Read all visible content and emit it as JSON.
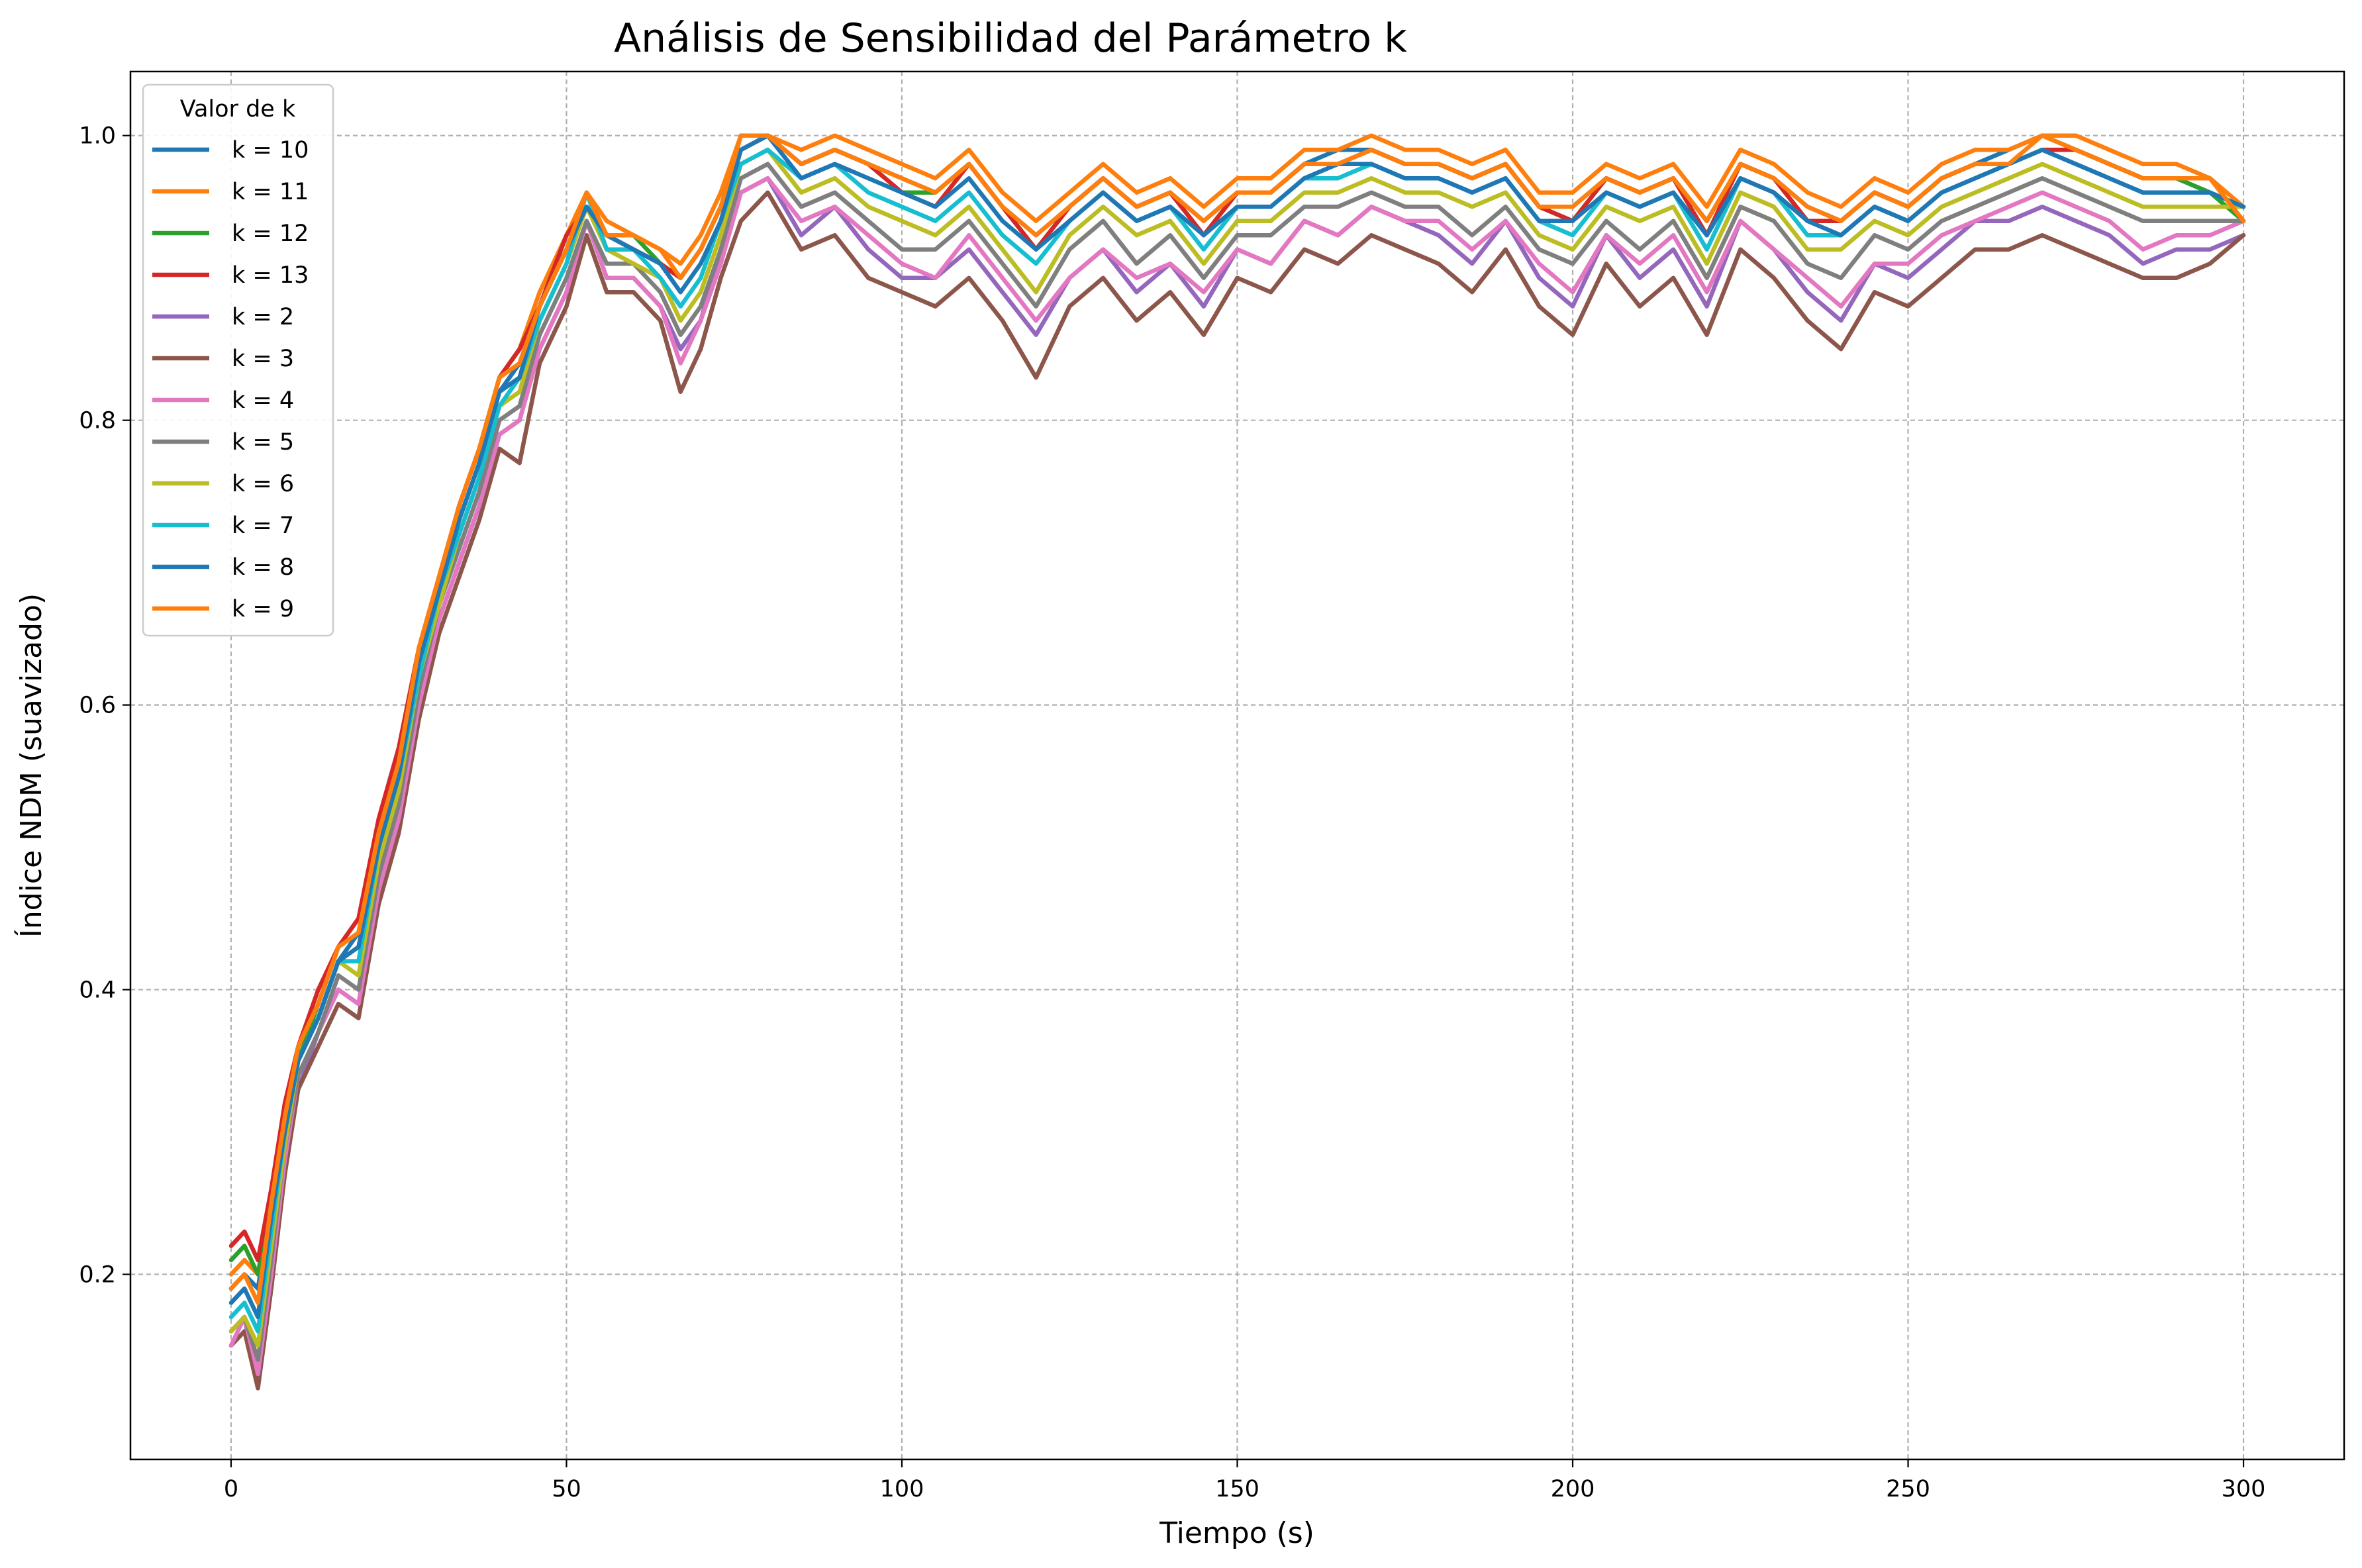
{
  "chart_data": {
    "type": "line",
    "title": "Análisis de Sensibilidad del Parámetro k",
    "xlabel": "Tiempo (s)",
    "ylabel": "Índice NDM (suavizado)",
    "xlim": [
      -15,
      315
    ],
    "ylim": [
      0.07,
      1.045
    ],
    "xticks": [
      0,
      50,
      100,
      150,
      200,
      250,
      300
    ],
    "yticks": [
      0.2,
      0.4,
      0.6,
      0.8,
      1.0
    ],
    "xtick_labels": [
      "0",
      "50",
      "100",
      "150",
      "200",
      "250",
      "300"
    ],
    "ytick_labels": [
      "0.2",
      "0.4",
      "0.6",
      "0.8",
      "1.0"
    ],
    "grid": true,
    "legend": {
      "title": "Valor de k",
      "placement": "upper-left"
    },
    "x": [
      0,
      2,
      4,
      6,
      8,
      10,
      13,
      16,
      19,
      22,
      25,
      28,
      31,
      34,
      37,
      40,
      43,
      46,
      50,
      53,
      56,
      60,
      64,
      67,
      70,
      73,
      76,
      80,
      85,
      90,
      95,
      100,
      105,
      110,
      115,
      120,
      125,
      130,
      135,
      140,
      145,
      150,
      155,
      160,
      165,
      170,
      175,
      180,
      185,
      190,
      195,
      200,
      205,
      210,
      215,
      220,
      225,
      230,
      235,
      240,
      245,
      250,
      255,
      260,
      265,
      270,
      275,
      280,
      285,
      290,
      295,
      300
    ],
    "series": [
      {
        "name": "k = 10",
        "color": "#1f77b4",
        "values": [
          0.19,
          0.2,
          0.19,
          0.25,
          0.3,
          0.35,
          0.38,
          0.42,
          0.44,
          0.5,
          0.55,
          0.63,
          0.68,
          0.73,
          0.77,
          0.82,
          0.84,
          0.88,
          0.92,
          0.95,
          0.93,
          0.92,
          0.91,
          0.9,
          0.92,
          0.95,
          0.99,
          1.0,
          0.98,
          0.99,
          0.98,
          0.97,
          0.96,
          0.98,
          0.95,
          0.93,
          0.95,
          0.97,
          0.95,
          0.96,
          0.94,
          0.96,
          0.96,
          0.98,
          0.99,
          0.99,
          0.98,
          0.98,
          0.97,
          0.98,
          0.95,
          0.95,
          0.97,
          0.96,
          0.97,
          0.94,
          0.98,
          0.97,
          0.95,
          0.94,
          0.96,
          0.95,
          0.97,
          0.98,
          0.99,
          1.0,
          0.99,
          0.98,
          0.97,
          0.97,
          0.96,
          0.95
        ]
      },
      {
        "name": "k = 11",
        "color": "#ff7f0e",
        "values": [
          0.2,
          0.21,
          0.2,
          0.26,
          0.31,
          0.36,
          0.39,
          0.43,
          0.45,
          0.51,
          0.56,
          0.64,
          0.69,
          0.74,
          0.78,
          0.83,
          0.85,
          0.89,
          0.93,
          0.96,
          0.94,
          0.93,
          0.92,
          0.91,
          0.93,
          0.96,
          1.0,
          1.0,
          0.99,
          1.0,
          0.99,
          0.98,
          0.97,
          0.99,
          0.96,
          0.94,
          0.96,
          0.98,
          0.96,
          0.97,
          0.95,
          0.97,
          0.97,
          0.99,
          0.99,
          1.0,
          0.99,
          0.99,
          0.98,
          0.99,
          0.96,
          0.96,
          0.98,
          0.97,
          0.98,
          0.95,
          0.99,
          0.98,
          0.96,
          0.95,
          0.97,
          0.96,
          0.98,
          0.99,
          0.99,
          1.0,
          1.0,
          0.99,
          0.98,
          0.98,
          0.97,
          0.95
        ]
      },
      {
        "name": "k = 12",
        "color": "#2ca02c",
        "values": [
          0.21,
          0.22,
          0.2,
          0.25,
          0.31,
          0.35,
          0.39,
          0.43,
          0.44,
          0.51,
          0.56,
          0.64,
          0.69,
          0.74,
          0.78,
          0.83,
          0.85,
          0.88,
          0.93,
          0.95,
          0.93,
          0.93,
          0.91,
          0.9,
          0.92,
          0.95,
          0.99,
          1.0,
          0.98,
          0.99,
          0.98,
          0.96,
          0.96,
          0.98,
          0.95,
          0.92,
          0.95,
          0.97,
          0.95,
          0.96,
          0.93,
          0.96,
          0.96,
          0.98,
          0.98,
          0.99,
          0.98,
          0.98,
          0.97,
          0.98,
          0.95,
          0.94,
          0.97,
          0.96,
          0.97,
          0.93,
          0.98,
          0.97,
          0.94,
          0.94,
          0.96,
          0.95,
          0.97,
          0.98,
          0.98,
          0.99,
          0.99,
          0.98,
          0.97,
          0.97,
          0.96,
          0.94
        ]
      },
      {
        "name": "k = 13",
        "color": "#d62728",
        "values": [
          0.22,
          0.23,
          0.21,
          0.26,
          0.32,
          0.36,
          0.4,
          0.43,
          0.45,
          0.52,
          0.57,
          0.64,
          0.69,
          0.74,
          0.78,
          0.83,
          0.85,
          0.88,
          0.93,
          0.95,
          0.93,
          0.92,
          0.91,
          0.9,
          0.92,
          0.95,
          0.99,
          1.0,
          0.98,
          0.99,
          0.98,
          0.96,
          0.95,
          0.98,
          0.95,
          0.92,
          0.95,
          0.97,
          0.95,
          0.96,
          0.93,
          0.96,
          0.96,
          0.98,
          0.98,
          0.99,
          0.98,
          0.98,
          0.97,
          0.98,
          0.95,
          0.94,
          0.97,
          0.96,
          0.97,
          0.93,
          0.98,
          0.97,
          0.94,
          0.94,
          0.96,
          0.95,
          0.97,
          0.98,
          0.98,
          0.99,
          0.99,
          0.98,
          0.97,
          0.97,
          0.97,
          0.94
        ]
      },
      {
        "name": "k = 2",
        "color": "#9467bd",
        "values": [
          0.16,
          0.17,
          0.12,
          0.2,
          0.28,
          0.33,
          0.37,
          0.4,
          0.39,
          0.47,
          0.52,
          0.6,
          0.66,
          0.7,
          0.74,
          0.79,
          0.8,
          0.85,
          0.89,
          0.94,
          0.9,
          0.9,
          0.88,
          0.85,
          0.87,
          0.92,
          0.96,
          0.97,
          0.93,
          0.95,
          0.92,
          0.9,
          0.9,
          0.92,
          0.89,
          0.86,
          0.9,
          0.92,
          0.89,
          0.91,
          0.88,
          0.92,
          0.91,
          0.94,
          0.93,
          0.95,
          0.94,
          0.93,
          0.91,
          0.94,
          0.9,
          0.88,
          0.93,
          0.9,
          0.92,
          0.88,
          0.94,
          0.92,
          0.89,
          0.87,
          0.91,
          0.9,
          0.92,
          0.94,
          0.94,
          0.95,
          0.94,
          0.93,
          0.91,
          0.92,
          0.92,
          0.93
        ]
      },
      {
        "name": "k = 3",
        "color": "#8c564b",
        "values": [
          0.15,
          0.16,
          0.12,
          0.19,
          0.27,
          0.33,
          0.36,
          0.39,
          0.38,
          0.46,
          0.51,
          0.59,
          0.65,
          0.69,
          0.73,
          0.78,
          0.77,
          0.84,
          0.88,
          0.93,
          0.89,
          0.89,
          0.87,
          0.82,
          0.85,
          0.9,
          0.94,
          0.96,
          0.92,
          0.93,
          0.9,
          0.89,
          0.88,
          0.9,
          0.87,
          0.83,
          0.88,
          0.9,
          0.87,
          0.89,
          0.86,
          0.9,
          0.89,
          0.92,
          0.91,
          0.93,
          0.92,
          0.91,
          0.89,
          0.92,
          0.88,
          0.86,
          0.91,
          0.88,
          0.9,
          0.86,
          0.92,
          0.9,
          0.87,
          0.85,
          0.89,
          0.88,
          0.9,
          0.92,
          0.92,
          0.93,
          0.92,
          0.91,
          0.9,
          0.9,
          0.91,
          0.93
        ]
      },
      {
        "name": "k = 4",
        "color": "#e377c2",
        "values": [
          0.15,
          0.17,
          0.13,
          0.2,
          0.28,
          0.34,
          0.37,
          0.4,
          0.39,
          0.47,
          0.52,
          0.6,
          0.66,
          0.7,
          0.74,
          0.79,
          0.8,
          0.85,
          0.89,
          0.94,
          0.9,
          0.9,
          0.88,
          0.84,
          0.87,
          0.91,
          0.96,
          0.97,
          0.94,
          0.95,
          0.93,
          0.91,
          0.9,
          0.93,
          0.9,
          0.87,
          0.9,
          0.92,
          0.9,
          0.91,
          0.89,
          0.92,
          0.91,
          0.94,
          0.93,
          0.95,
          0.94,
          0.94,
          0.92,
          0.94,
          0.91,
          0.89,
          0.93,
          0.91,
          0.93,
          0.89,
          0.94,
          0.92,
          0.9,
          0.88,
          0.91,
          0.91,
          0.93,
          0.94,
          0.95,
          0.96,
          0.95,
          0.94,
          0.92,
          0.93,
          0.93,
          0.94
        ]
      },
      {
        "name": "k = 5",
        "color": "#7f7f7f",
        "values": [
          0.16,
          0.17,
          0.14,
          0.21,
          0.29,
          0.34,
          0.37,
          0.41,
          0.4,
          0.48,
          0.53,
          0.61,
          0.67,
          0.71,
          0.75,
          0.8,
          0.81,
          0.86,
          0.9,
          0.94,
          0.91,
          0.91,
          0.89,
          0.86,
          0.88,
          0.92,
          0.97,
          0.98,
          0.95,
          0.96,
          0.94,
          0.92,
          0.92,
          0.94,
          0.91,
          0.88,
          0.92,
          0.94,
          0.91,
          0.93,
          0.9,
          0.93,
          0.93,
          0.95,
          0.95,
          0.96,
          0.95,
          0.95,
          0.93,
          0.95,
          0.92,
          0.91,
          0.94,
          0.92,
          0.94,
          0.9,
          0.95,
          0.94,
          0.91,
          0.9,
          0.93,
          0.92,
          0.94,
          0.95,
          0.96,
          0.97,
          0.96,
          0.95,
          0.94,
          0.94,
          0.94,
          0.94
        ]
      },
      {
        "name": "k = 6",
        "color": "#bcbd22",
        "values": [
          0.16,
          0.17,
          0.15,
          0.22,
          0.29,
          0.35,
          0.38,
          0.42,
          0.41,
          0.49,
          0.54,
          0.62,
          0.67,
          0.72,
          0.76,
          0.81,
          0.82,
          0.87,
          0.91,
          0.95,
          0.92,
          0.91,
          0.9,
          0.87,
          0.89,
          0.93,
          0.98,
          0.99,
          0.96,
          0.97,
          0.95,
          0.94,
          0.93,
          0.95,
          0.92,
          0.89,
          0.93,
          0.95,
          0.93,
          0.94,
          0.91,
          0.94,
          0.94,
          0.96,
          0.96,
          0.97,
          0.96,
          0.96,
          0.95,
          0.96,
          0.93,
          0.92,
          0.95,
          0.94,
          0.95,
          0.91,
          0.96,
          0.95,
          0.92,
          0.92,
          0.94,
          0.93,
          0.95,
          0.96,
          0.97,
          0.98,
          0.97,
          0.96,
          0.95,
          0.95,
          0.95,
          0.95
        ]
      },
      {
        "name": "k = 7",
        "color": "#17becf",
        "values": [
          0.17,
          0.18,
          0.16,
          0.23,
          0.3,
          0.35,
          0.38,
          0.42,
          0.42,
          0.5,
          0.55,
          0.62,
          0.68,
          0.72,
          0.76,
          0.81,
          0.83,
          0.87,
          0.91,
          0.96,
          0.92,
          0.92,
          0.9,
          0.88,
          0.9,
          0.94,
          0.98,
          0.99,
          0.97,
          0.98,
          0.96,
          0.95,
          0.94,
          0.96,
          0.93,
          0.91,
          0.94,
          0.96,
          0.94,
          0.95,
          0.92,
          0.95,
          0.95,
          0.97,
          0.97,
          0.98,
          0.97,
          0.97,
          0.96,
          0.97,
          0.94,
          0.93,
          0.96,
          0.95,
          0.96,
          0.92,
          0.97,
          0.96,
          0.93,
          0.93,
          0.95,
          0.94,
          0.96,
          0.97,
          0.98,
          0.99,
          0.98,
          0.97,
          0.96,
          0.96,
          0.96,
          0.95
        ]
      },
      {
        "name": "k = 8",
        "color": "#1f77b4",
        "values": [
          0.18,
          0.19,
          0.17,
          0.24,
          0.3,
          0.35,
          0.38,
          0.42,
          0.43,
          0.5,
          0.55,
          0.63,
          0.68,
          0.73,
          0.77,
          0.82,
          0.83,
          0.88,
          0.92,
          0.95,
          0.93,
          0.92,
          0.91,
          0.89,
          0.91,
          0.94,
          0.99,
          1.0,
          0.97,
          0.98,
          0.97,
          0.96,
          0.95,
          0.97,
          0.94,
          0.92,
          0.94,
          0.96,
          0.94,
          0.95,
          0.93,
          0.95,
          0.95,
          0.97,
          0.98,
          0.98,
          0.97,
          0.97,
          0.96,
          0.97,
          0.94,
          0.94,
          0.96,
          0.95,
          0.96,
          0.93,
          0.97,
          0.96,
          0.94,
          0.93,
          0.95,
          0.94,
          0.96,
          0.97,
          0.98,
          0.99,
          0.98,
          0.97,
          0.96,
          0.96,
          0.96,
          0.95
        ]
      },
      {
        "name": "k = 9",
        "color": "#ff7f0e",
        "values": [
          0.19,
          0.2,
          0.18,
          0.25,
          0.31,
          0.36,
          0.39,
          0.43,
          0.44,
          0.51,
          0.56,
          0.64,
          0.69,
          0.74,
          0.78,
          0.83,
          0.84,
          0.88,
          0.92,
          0.96,
          0.93,
          0.93,
          0.92,
          0.9,
          0.92,
          0.95,
          1.0,
          1.0,
          0.98,
          0.99,
          0.98,
          0.97,
          0.96,
          0.98,
          0.95,
          0.93,
          0.95,
          0.97,
          0.95,
          0.96,
          0.94,
          0.96,
          0.96,
          0.98,
          0.98,
          0.99,
          0.98,
          0.98,
          0.97,
          0.98,
          0.95,
          0.95,
          0.97,
          0.96,
          0.97,
          0.94,
          0.98,
          0.97,
          0.95,
          0.94,
          0.96,
          0.95,
          0.97,
          0.98,
          0.98,
          1.0,
          0.99,
          0.98,
          0.97,
          0.97,
          0.97,
          0.94
        ]
      }
    ]
  }
}
